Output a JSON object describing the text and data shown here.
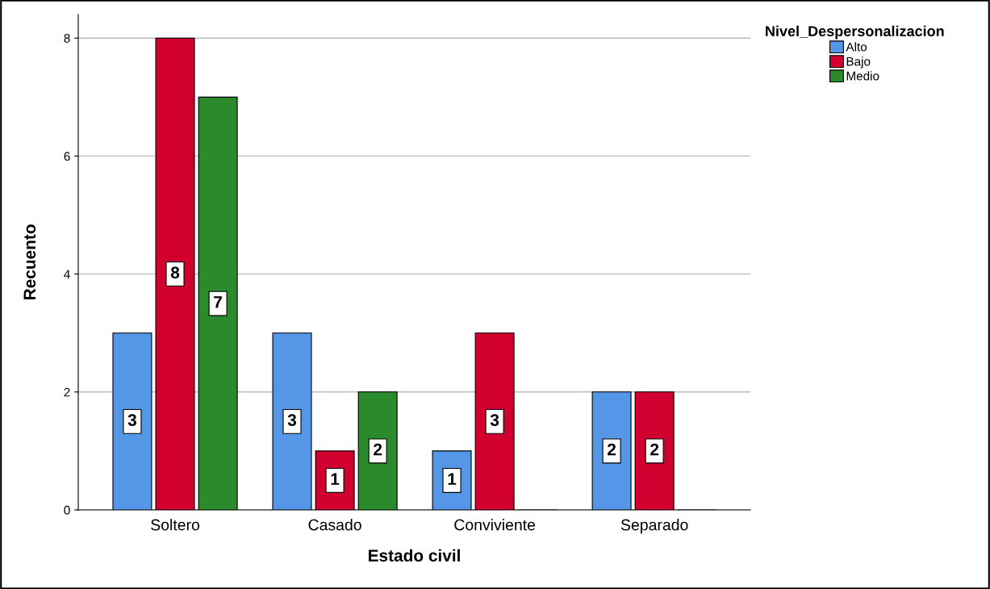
{
  "chart_data": {
    "type": "bar",
    "xlabel": "Estado civil",
    "ylabel": "Recuento",
    "legend_title": "Nivel_Despersonalizacion",
    "categories": [
      "Soltero",
      "Casado",
      "Conviviente",
      "Separado"
    ],
    "series": [
      {
        "name": "Alto",
        "color": "#5596e6",
        "values": [
          3,
          3,
          1,
          2
        ],
        "value_labels": [
          "3",
          "3",
          "1",
          "2"
        ]
      },
      {
        "name": "Bajo",
        "color": "#d2002e",
        "values": [
          8,
          1,
          3,
          2
        ],
        "value_labels": [
          "8",
          "1",
          "3",
          "2"
        ]
      },
      {
        "name": "Medio",
        "color": "#2b8a2b",
        "values": [
          7,
          2,
          0,
          0
        ],
        "value_labels": [
          "7",
          "2",
          null,
          null
        ]
      }
    ],
    "ylim": [
      0,
      8.4
    ],
    "yticks": [
      0,
      2,
      4,
      6,
      8
    ],
    "grid": "y",
    "legend": "top right"
  }
}
